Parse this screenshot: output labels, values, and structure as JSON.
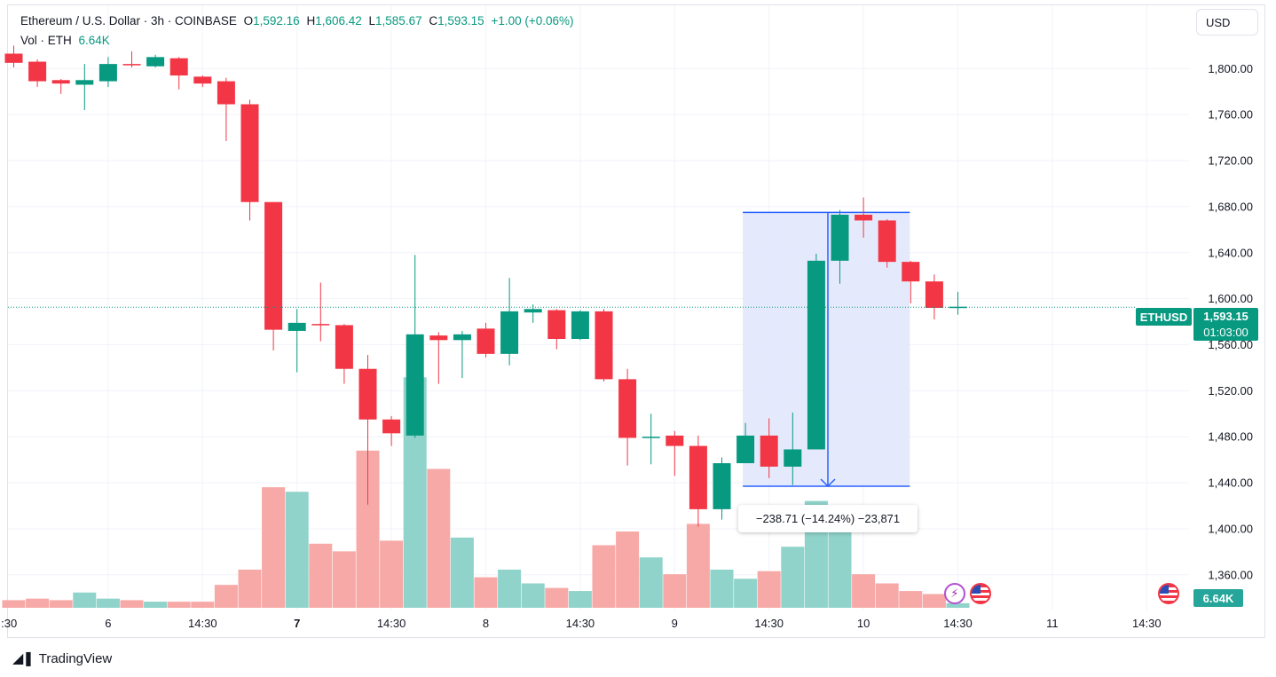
{
  "header": {
    "symbol_title": "Ethereum / U.S. Dollar · 3h · COINBASE",
    "ohlc": [
      {
        "label": "O",
        "value": "1,592.16"
      },
      {
        "label": "H",
        "value": "1,606.42"
      },
      {
        "label": "L",
        "value": "1,585.67"
      },
      {
        "label": "C",
        "value": "1,593.15"
      }
    ],
    "change": "+1.00 (+0.06%)",
    "volume_label": "Vol · ETH",
    "volume_value": "6.64K"
  },
  "currency_button": "USD",
  "brand": "TradingView",
  "price_tags": {
    "symbol": "ETHUSD",
    "last_price": "1,593.15",
    "countdown": "01:03:00",
    "volume": "6.64K"
  },
  "measure_tool": {
    "label": "−238.71 (−14.24%) −23,871",
    "from_price": 1675,
    "to_price": 1437,
    "from_bar": 31,
    "to_bar": 38
  },
  "colors": {
    "up": "#089981",
    "down": "#f23645",
    "volume_up": "#8fd3ca",
    "volume_down": "#f7a9a7",
    "measure_fill": "#dfe6fb",
    "measure_line": "#2962ff",
    "grid": "#f0f3fa",
    "last_price_line": "#089981"
  },
  "chart_data": {
    "type": "candlestick",
    "title": "Ethereum / U.S. Dollar · 3h · COINBASE",
    "interval": "3h",
    "price_axis": {
      "ticks": [
        "1,360.00",
        "1,400.00",
        "1,440.00",
        "1,480.00",
        "1,520.00",
        "1,560.00",
        "1,600.00",
        "1,640.00",
        "1,680.00",
        "1,720.00",
        "1,760.00",
        "1,800.00"
      ],
      "tick_values": [
        1360,
        1400,
        1440,
        1480,
        1520,
        1560,
        1600,
        1640,
        1680,
        1720,
        1760,
        1800
      ],
      "range": [
        1329,
        1855
      ]
    },
    "time_axis": {
      "ticks": [
        {
          "label": ":30",
          "bar": -0.2,
          "bold": false
        },
        {
          "label": "6",
          "bar": 4,
          "bold": false
        },
        {
          "label": "14:30",
          "bar": 8,
          "bold": false
        },
        {
          "label": "7",
          "bar": 12,
          "bold": true
        },
        {
          "label": "14:30",
          "bar": 16,
          "bold": false
        },
        {
          "label": "8",
          "bar": 20,
          "bold": false
        },
        {
          "label": "14:30",
          "bar": 24,
          "bold": false
        },
        {
          "label": "9",
          "bar": 28,
          "bold": false
        },
        {
          "label": "14:30",
          "bar": 32,
          "bold": false
        },
        {
          "label": "10",
          "bar": 36,
          "bold": false
        },
        {
          "label": "14:30",
          "bar": 40,
          "bold": false
        },
        {
          "label": "11",
          "bar": 44,
          "bold": false
        },
        {
          "label": "14:30",
          "bar": 48,
          "bold": false
        }
      ]
    },
    "volume_max": 100,
    "candles": [
      {
        "o": 1813,
        "h": 1820,
        "l": 1801,
        "c": 1805,
        "v": 5
      },
      {
        "o": 1806,
        "h": 1808,
        "l": 1784,
        "c": 1789,
        "v": 6
      },
      {
        "o": 1790,
        "h": 1791,
        "l": 1778,
        "c": 1787,
        "v": 5
      },
      {
        "o": 1786,
        "h": 1804,
        "l": 1764,
        "c": 1790,
        "v": 10
      },
      {
        "o": 1789,
        "h": 1810,
        "l": 1784,
        "c": 1804,
        "v": 6
      },
      {
        "o": 1804,
        "h": 1815,
        "l": 1801,
        "c": 1803,
        "v": 5
      },
      {
        "o": 1802,
        "h": 1812,
        "l": 1801,
        "c": 1810,
        "v": 4
      },
      {
        "o": 1809,
        "h": 1810,
        "l": 1782,
        "c": 1794,
        "v": 4
      },
      {
        "o": 1793,
        "h": 1794,
        "l": 1784,
        "c": 1787,
        "v": 4
      },
      {
        "o": 1789,
        "h": 1792,
        "l": 1737,
        "c": 1769,
        "v": 15
      },
      {
        "o": 1769,
        "h": 1773,
        "l": 1668,
        "c": 1684,
        "v": 25
      },
      {
        "o": 1684,
        "h": 1684,
        "l": 1555,
        "c": 1573,
        "v": 79
      },
      {
        "o": 1572,
        "h": 1591,
        "l": 1536,
        "c": 1579,
        "v": 76
      },
      {
        "o": 1578,
        "h": 1614,
        "l": 1563,
        "c": 1577,
        "v": 42
      },
      {
        "o": 1577,
        "h": 1578,
        "l": 1526,
        "c": 1539,
        "v": 37
      },
      {
        "o": 1539,
        "h": 1551,
        "l": 1421,
        "c": 1495,
        "v": 103
      },
      {
        "o": 1495,
        "h": 1498,
        "l": 1472,
        "c": 1483,
        "v": 44
      },
      {
        "o": 1481,
        "h": 1638,
        "l": 1479,
        "c": 1569,
        "v": 151
      },
      {
        "o": 1568,
        "h": 1571,
        "l": 1526,
        "c": 1564,
        "v": 91
      },
      {
        "o": 1564,
        "h": 1572,
        "l": 1531,
        "c": 1569,
        "v": 46
      },
      {
        "o": 1574,
        "h": 1579,
        "l": 1549,
        "c": 1552,
        "v": 20
      },
      {
        "o": 1552,
        "h": 1618,
        "l": 1542,
        "c": 1589,
        "v": 25
      },
      {
        "o": 1588,
        "h": 1595,
        "l": 1579,
        "c": 1591,
        "v": 16
      },
      {
        "o": 1590,
        "h": 1591,
        "l": 1556,
        "c": 1565,
        "v": 13
      },
      {
        "o": 1565,
        "h": 1590,
        "l": 1564,
        "c": 1589,
        "v": 11
      },
      {
        "o": 1589,
        "h": 1591,
        "l": 1528,
        "c": 1530,
        "v": 41
      },
      {
        "o": 1530,
        "h": 1539,
        "l": 1455,
        "c": 1479,
        "v": 50
      },
      {
        "o": 1479,
        "h": 1500,
        "l": 1456,
        "c": 1480,
        "v": 33
      },
      {
        "o": 1481,
        "h": 1485,
        "l": 1446,
        "c": 1472,
        "v": 22
      },
      {
        "o": 1472,
        "h": 1481,
        "l": 1402,
        "c": 1417,
        "v": 55
      },
      {
        "o": 1417,
        "h": 1462,
        "l": 1408,
        "c": 1457,
        "v": 25
      },
      {
        "o": 1457,
        "h": 1492,
        "l": 1457,
        "c": 1481,
        "v": 19
      },
      {
        "o": 1481,
        "h": 1496,
        "l": 1444,
        "c": 1454,
        "v": 24
      },
      {
        "o": 1454,
        "h": 1501,
        "l": 1438,
        "c": 1469,
        "v": 40
      },
      {
        "o": 1469,
        "h": 1639,
        "l": 1469,
        "c": 1633,
        "v": 70
      },
      {
        "o": 1633,
        "h": 1677,
        "l": 1613,
        "c": 1673,
        "v": 66
      },
      {
        "o": 1673,
        "h": 1688,
        "l": 1653,
        "c": 1668,
        "v": 22
      },
      {
        "o": 1668,
        "h": 1669,
        "l": 1627,
        "c": 1632,
        "v": 16
      },
      {
        "o": 1632,
        "h": 1633,
        "l": 1596,
        "c": 1615,
        "v": 11
      },
      {
        "o": 1615,
        "h": 1621,
        "l": 1582,
        "c": 1592,
        "v": 9
      },
      {
        "o": 1592,
        "h": 1606,
        "l": 1586,
        "c": 1593,
        "v": 3
      }
    ]
  }
}
